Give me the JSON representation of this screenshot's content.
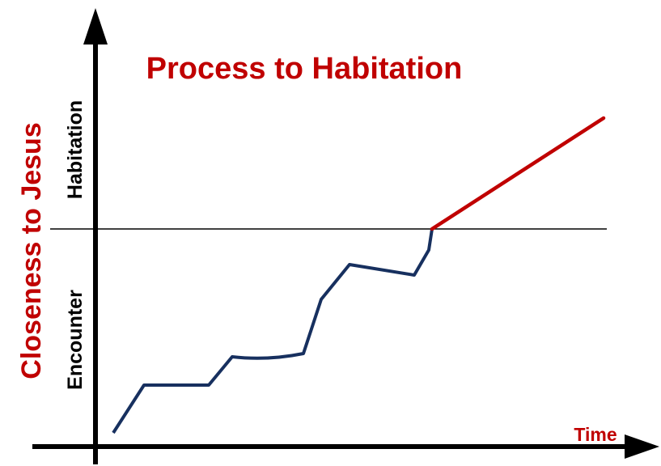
{
  "title": "Process to Habitation",
  "y_axis_label": "Closeness to Jesus",
  "x_axis_label": "Time",
  "regions": {
    "upper": "Habitation",
    "lower": "Encounter"
  }
}
